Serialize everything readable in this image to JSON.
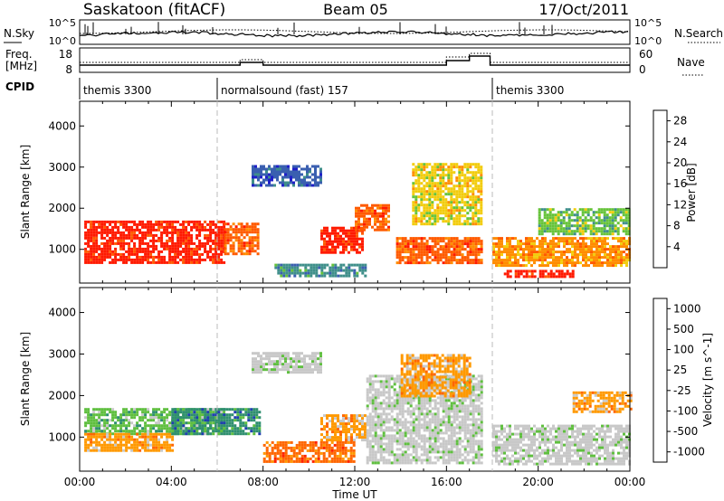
{
  "header": {
    "station": "Saskatoon (fitACF)",
    "beam": "Beam 05",
    "date": "17/Oct/2011"
  },
  "noise_panel": {
    "left_label": "N.Sky",
    "left_ticks": [
      "10^5",
      "10^0"
    ],
    "right_ticks": [
      "10^5",
      "10^0"
    ],
    "right_label": "N.Search"
  },
  "freq_panel": {
    "left_label_line1": "Freq.",
    "left_label_line2": "[MHz]",
    "left_ticks": [
      "18",
      "8"
    ],
    "right_ticks": [
      "60",
      "0"
    ],
    "right_label": "Nave"
  },
  "cpid_panel": {
    "label": "CPID",
    "segments": [
      {
        "start_hour": 0,
        "end_hour": 6,
        "name": "themis 3300"
      },
      {
        "start_hour": 6,
        "end_hour": 18,
        "name": "normalsound (fast) 157"
      },
      {
        "start_hour": 18,
        "end_hour": 24,
        "name": "themis 3300"
      }
    ]
  },
  "chart_data": [
    {
      "type": "heatmap",
      "quantity": "Power",
      "ylabel": "Slant Range [km]",
      "yticks": [
        1000,
        2000,
        3000,
        4000
      ],
      "ylim": [
        180,
        4600
      ],
      "colorbar_label": "Power [dB]",
      "colorbar_ticks": [
        4,
        8,
        12,
        16,
        20,
        24,
        28
      ],
      "colorbar_range": [
        0,
        30
      ],
      "colors": [
        "#1f1fc8",
        "#3a5fb0",
        "#3f8f8a",
        "#66c33a",
        "#f2cc0d",
        "#ff8c00",
        "#ff5a00",
        "#ff1a00"
      ],
      "echo_regions": [
        {
          "t0": 0.2,
          "t1": 6.3,
          "r0": 700,
          "r1": 1700,
          "level": 28
        },
        {
          "t0": 6.3,
          "t1": 7.8,
          "r0": 900,
          "r1": 1650,
          "level": 24
        },
        {
          "t0": 10.5,
          "t1": 12.3,
          "r0": 950,
          "r1": 1550,
          "level": 28
        },
        {
          "t0": 12.0,
          "t1": 13.5,
          "r0": 1500,
          "r1": 2100,
          "level": 24
        },
        {
          "t0": 13.8,
          "t1": 17.5,
          "r0": 700,
          "r1": 1300,
          "level": 24
        },
        {
          "t0": 18.0,
          "t1": 24.0,
          "r0": 600,
          "r1": 1300,
          "level": 20
        },
        {
          "t0": 18.5,
          "t1": 21.5,
          "r0": 350,
          "r1": 500,
          "level": 28
        },
        {
          "t0": 7.5,
          "t1": 10.5,
          "r0": 2550,
          "r1": 3050,
          "level": 6
        },
        {
          "t0": 8.5,
          "t1": 12.5,
          "r0": 350,
          "r1": 650,
          "level": 8
        },
        {
          "t0": 14.5,
          "t1": 17.5,
          "r0": 1600,
          "r1": 3100,
          "level": 18
        },
        {
          "t0": 20.0,
          "t1": 24.0,
          "r0": 1400,
          "r1": 2000,
          "level": 14
        }
      ]
    },
    {
      "type": "heatmap",
      "quantity": "Velocity",
      "xlabel": "Time UT",
      "ylabel": "Slant Range [km]",
      "yticks": [
        1000,
        2000,
        3000,
        4000
      ],
      "ylim": [
        180,
        4600
      ],
      "xticks": [
        "00:00",
        "04:00",
        "08:00",
        "12:00",
        "16:00",
        "20:00",
        "00:00"
      ],
      "colorbar_label": "Velocity [m s^-1]",
      "colorbar_ticks": [
        "1000",
        "500",
        "100",
        "25",
        "-25",
        "-100",
        "-500",
        "-1000"
      ],
      "colors": [
        "#1f3fb0",
        "#2f8f6f",
        "#5fbf3f",
        "#c8c8c8",
        "#c8c8c8",
        "#ff9900",
        "#ff6600",
        "#ff2200"
      ],
      "echo_regions": [
        {
          "t0": 0.2,
          "t1": 6.3,
          "r0": 1100,
          "r1": 1700,
          "level": "100"
        },
        {
          "t0": 0.2,
          "t1": 4.0,
          "r0": 700,
          "r1": 1100,
          "level": "-100"
        },
        {
          "t0": 4.0,
          "t1": 7.8,
          "r0": 1100,
          "r1": 1700,
          "level": "500"
        },
        {
          "t0": 10.5,
          "t1": 12.5,
          "r0": 950,
          "r1": 1550,
          "level": "-100"
        },
        {
          "t0": 12.5,
          "t1": 17.5,
          "r0": 400,
          "r1": 2500,
          "level": "25"
        },
        {
          "t0": 18.0,
          "t1": 24.0,
          "r0": 350,
          "r1": 1300,
          "level": "25"
        },
        {
          "t0": 7.5,
          "t1": 10.5,
          "r0": 2550,
          "r1": 3050,
          "level": "25"
        },
        {
          "t0": 8.0,
          "t1": 12.0,
          "r0": 400,
          "r1": 900,
          "level": "-500"
        },
        {
          "t0": 14.0,
          "t1": 17.0,
          "r0": 2000,
          "r1": 3000,
          "level": "-100"
        },
        {
          "t0": 21.5,
          "t1": 24.0,
          "r0": 1600,
          "r1": 2100,
          "level": "-100"
        }
      ]
    }
  ]
}
